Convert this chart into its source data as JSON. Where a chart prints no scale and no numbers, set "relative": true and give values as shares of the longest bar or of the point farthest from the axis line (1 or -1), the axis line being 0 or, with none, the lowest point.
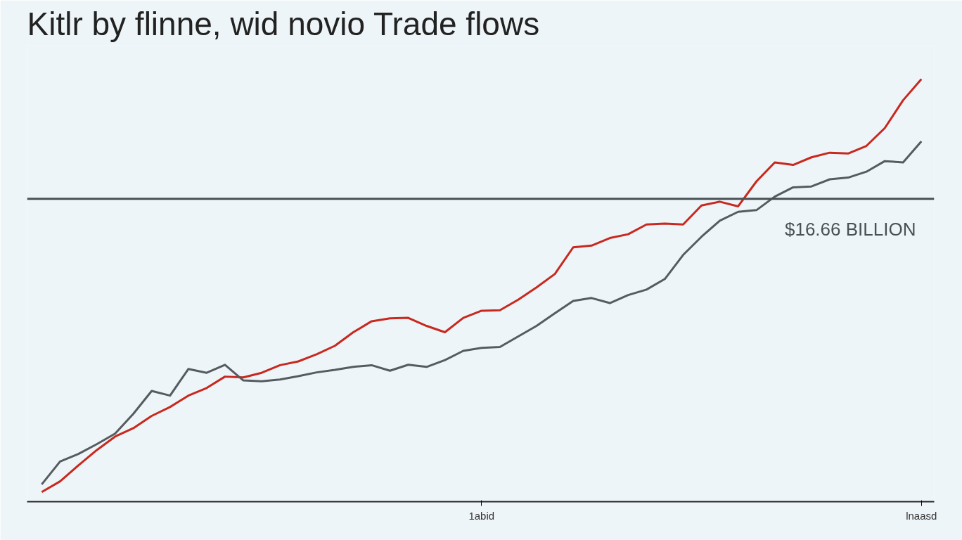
{
  "chart_data": {
    "type": "line",
    "title": "Kitlr by flinne, wid novio Trade flows",
    "relative": true,
    "categories": [
      null,
      null,
      null,
      null,
      null,
      null,
      null,
      null,
      null,
      null,
      null,
      null,
      null,
      null,
      null,
      null,
      null,
      null,
      null,
      null,
      null,
      null,
      null,
      null,
      "1abid",
      null,
      null,
      null,
      null,
      null,
      null,
      null,
      null,
      null,
      null,
      null,
      null,
      null,
      null,
      null,
      null,
      null,
      null,
      null,
      null,
      null,
      null,
      null,
      "lnaasd"
    ],
    "series": [
      {
        "color": "#c8281e",
        "values": [
          0.023,
          0.048,
          0.086,
          0.122,
          0.154,
          0.174,
          0.203,
          0.224,
          0.251,
          0.269,
          0.296,
          0.294,
          0.305,
          0.323,
          0.332,
          0.349,
          0.369,
          0.401,
          0.427,
          0.434,
          0.435,
          0.416,
          0.401,
          0.435,
          0.452,
          0.453,
          0.478,
          0.507,
          0.539,
          0.602,
          0.606,
          0.624,
          0.633,
          0.656,
          0.658,
          0.656,
          0.701,
          0.71,
          0.699,
          0.758,
          0.803,
          0.797,
          0.815,
          0.826,
          0.824,
          0.842,
          0.884,
          0.95,
          1.0
        ]
      },
      {
        "color": "#555c60",
        "values": [
          0.041,
          0.095,
          0.113,
          0.136,
          0.161,
          0.208,
          0.262,
          0.251,
          0.314,
          0.305,
          0.324,
          0.287,
          0.285,
          0.289,
          0.297,
          0.306,
          0.312,
          0.319,
          0.323,
          0.31,
          0.324,
          0.319,
          0.335,
          0.357,
          0.364,
          0.366,
          0.391,
          0.416,
          0.446,
          0.475,
          0.482,
          0.47,
          0.489,
          0.502,
          0.527,
          0.584,
          0.627,
          0.665,
          0.686,
          0.69,
          0.722,
          0.744,
          0.746,
          0.763,
          0.767,
          0.781,
          0.806,
          0.803,
          0.853
        ]
      }
    ],
    "ref_lines": [
      {
        "axis": "y",
        "value": 0.717,
        "label": "$16.66 BILLION",
        "color": "#4a5156"
      }
    ],
    "line_style": "solid"
  }
}
